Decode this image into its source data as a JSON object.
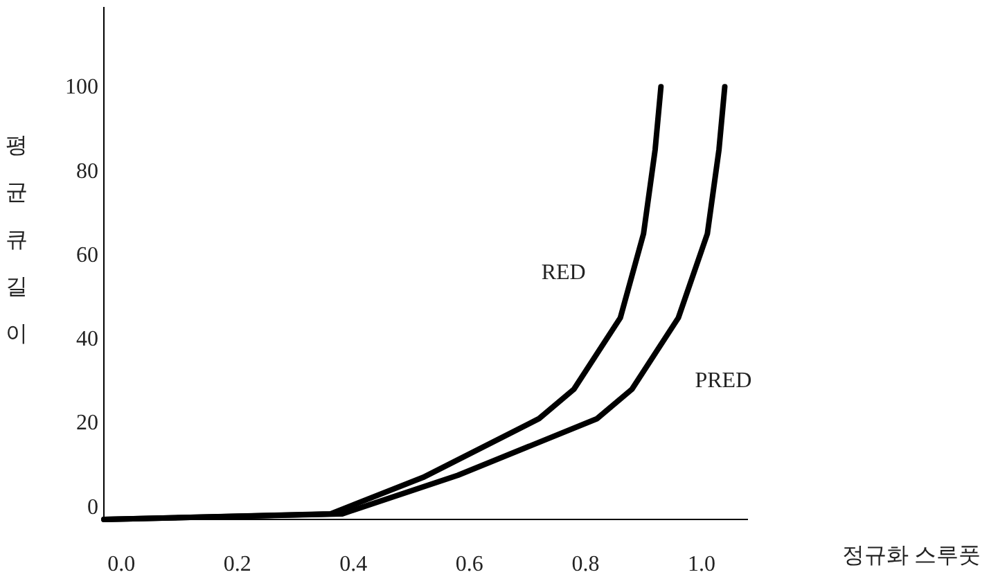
{
  "chart_data": {
    "type": "line",
    "xlabel": "정규화 스루풋",
    "ylabel": "평균큐길이",
    "xlim": [
      -0.03,
      1.08
    ],
    "ylim": [
      -3,
      119
    ],
    "xticks": [
      {
        "value": 0,
        "label": "0.0"
      },
      {
        "value": 0.2,
        "label": "0.2"
      },
      {
        "value": 0.4,
        "label": "0.4"
      },
      {
        "value": 0.6,
        "label": "0.6"
      },
      {
        "value": 0.8,
        "label": "0.8"
      },
      {
        "value": 1,
        "label": "1.0"
      }
    ],
    "yticks": [
      0,
      20,
      40,
      60,
      80,
      100
    ],
    "grid": false,
    "marker": "none",
    "line_style": "solid",
    "series": [
      {
        "name": "RED",
        "color": "#000000",
        "x": [
          -0.03,
          0.36,
          0.52,
          0.72,
          0.78,
          0.86,
          0.9,
          0.92,
          0.93
        ],
        "values": [
          -3,
          -1.7,
          7,
          21,
          28,
          45,
          65,
          85,
          100
        ]
      },
      {
        "name": "PRED",
        "color": "#000000",
        "x": [
          -0.03,
          0.38,
          0.58,
          0.82,
          0.88,
          0.96,
          1.01,
          1.03,
          1.04
        ],
        "values": [
          -3,
          -1.7,
          7.5,
          21,
          28,
          45,
          65,
          85,
          100
        ]
      }
    ]
  }
}
